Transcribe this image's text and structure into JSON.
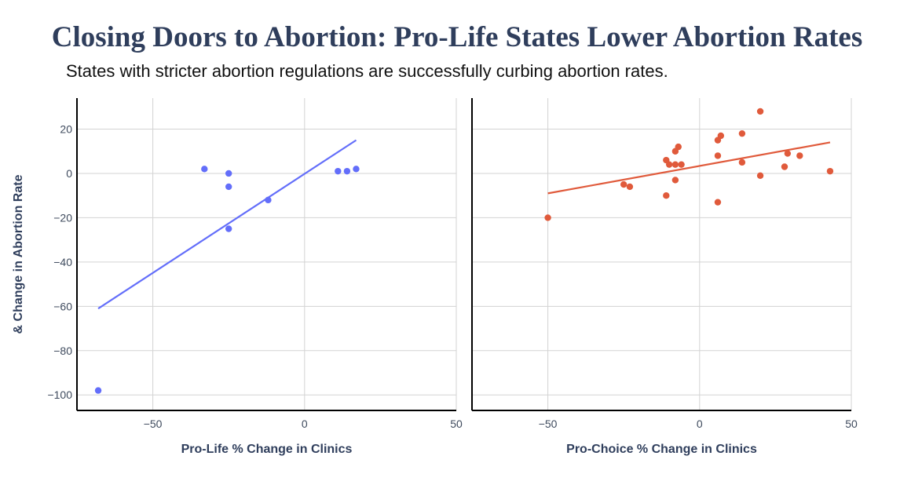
{
  "title": "Closing Doors to Abortion: Pro-Life States Lower Abortion Rates",
  "subtitle": "States with stricter abortion regulations are successfully curbing abortion rates.",
  "chart_data": [
    {
      "type": "scatter",
      "xlabel": "Pro-Life % Change in Clinics",
      "ylabel": "& Change in Abortion Rate",
      "xlim": [
        -75,
        50
      ],
      "ylim": [
        -107,
        34
      ],
      "xticks": [
        -50,
        0,
        50
      ],
      "yticks": [
        20,
        0,
        -20,
        -40,
        -60,
        -80,
        -100
      ],
      "xtick_labels": [
        "−50",
        "0",
        "50"
      ],
      "ytick_labels": [
        "20",
        "0",
        "−20",
        "−40",
        "−60",
        "−80",
        "−100"
      ],
      "grid": true,
      "color": "#636efa",
      "points": [
        {
          "x": -68,
          "y": -98
        },
        {
          "x": -33,
          "y": 2
        },
        {
          "x": -25,
          "y": 0
        },
        {
          "x": -25,
          "y": -6
        },
        {
          "x": -25,
          "y": -25
        },
        {
          "x": -12,
          "y": -12
        },
        {
          "x": 11,
          "y": 1
        },
        {
          "x": 14,
          "y": 1
        },
        {
          "x": 17,
          "y": 2
        }
      ],
      "trendline": [
        {
          "x": -68,
          "y": -61
        },
        {
          "x": 17,
          "y": 15
        }
      ]
    },
    {
      "type": "scatter",
      "xlabel": "Pro-Choice % Change in Clinics",
      "ylabel": "",
      "xlim": [
        -75,
        50
      ],
      "ylim": [
        -107,
        34
      ],
      "xticks": [
        -50,
        0,
        50
      ],
      "yticks": [
        20,
        0,
        -20,
        -40,
        -60,
        -80,
        -100
      ],
      "xtick_labels": [
        "−50",
        "0",
        "50"
      ],
      "ytick_labels": [],
      "grid": true,
      "color": "#e05a3b",
      "points": [
        {
          "x": -50,
          "y": -20
        },
        {
          "x": -25,
          "y": -5
        },
        {
          "x": -23,
          "y": -6
        },
        {
          "x": -11,
          "y": -10
        },
        {
          "x": -11,
          "y": 6
        },
        {
          "x": -10,
          "y": 4
        },
        {
          "x": -8,
          "y": 4
        },
        {
          "x": -8,
          "y": 10
        },
        {
          "x": -8,
          "y": -3
        },
        {
          "x": -7,
          "y": 12
        },
        {
          "x": -6,
          "y": 4
        },
        {
          "x": 6,
          "y": 15
        },
        {
          "x": 6,
          "y": 8
        },
        {
          "x": 6,
          "y": -13
        },
        {
          "x": 7,
          "y": 17
        },
        {
          "x": 14,
          "y": 18
        },
        {
          "x": 14,
          "y": 5
        },
        {
          "x": 20,
          "y": 28
        },
        {
          "x": 20,
          "y": -1
        },
        {
          "x": 28,
          "y": 3
        },
        {
          "x": 29,
          "y": 9
        },
        {
          "x": 33,
          "y": 8
        },
        {
          "x": 43,
          "y": 1
        }
      ],
      "trendline": [
        {
          "x": -50,
          "y": -9
        },
        {
          "x": 43,
          "y": 14
        }
      ]
    }
  ]
}
